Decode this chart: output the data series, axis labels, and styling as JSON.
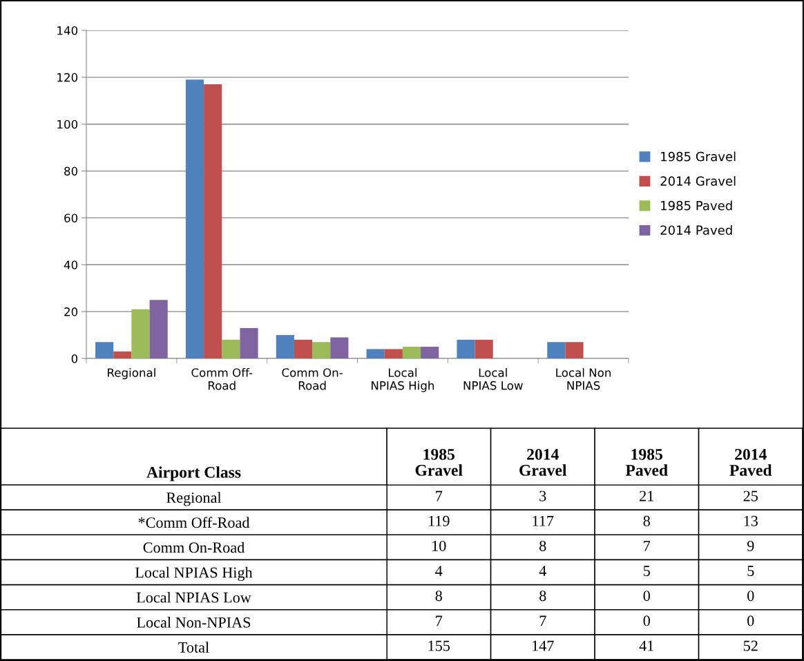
{
  "chart_data": [
    {
      "type": "bar",
      "categories": [
        "Regional",
        "Comm Off-Road",
        "Comm On-Road",
        "Local NPIAS High",
        "Local NPIAS Low",
        "Local Non NPIAS"
      ],
      "series": [
        {
          "name": "1985 Gravel",
          "color": "#4f81bd",
          "values": [
            7,
            119,
            10,
            4,
            8,
            7
          ]
        },
        {
          "name": "2014 Gravel",
          "color": "#c0504d",
          "values": [
            3,
            117,
            8,
            4,
            8,
            7
          ]
        },
        {
          "name": "1985 Paved",
          "color": "#9bbb59",
          "values": [
            21,
            8,
            7,
            5,
            0,
            0
          ]
        },
        {
          "name": "2014 Paved",
          "color": "#8064a2",
          "values": [
            25,
            13,
            9,
            5,
            0,
            0
          ]
        }
      ],
      "ylim": [
        0,
        140
      ],
      "yticks": [
        0,
        20,
        40,
        60,
        80,
        100,
        120,
        140
      ],
      "grid": "y",
      "legend": "right"
    },
    {
      "type": "other",
      "ylabel": "Airport Class",
      "categories": [
        "1985 Gravel",
        "2014 Gravel",
        "1985 Paved",
        "2014 Paved"
      ],
      "y_categories": [
        "Regional",
        "*Comm Off-Road",
        "Comm On-Road",
        "Local NPIAS High",
        "Local NPIAS Low",
        "Local Non-NPIAS",
        "Total"
      ],
      "cell_labels": [
        [
          "7",
          "3",
          "21",
          "25"
        ],
        [
          "119",
          "117",
          "8",
          "13"
        ],
        [
          "10",
          "8",
          "7",
          "9"
        ],
        [
          "4",
          "4",
          "5",
          "5"
        ],
        [
          "8",
          "8",
          "0",
          "0"
        ],
        [
          "7",
          "7",
          "0",
          "0"
        ],
        [
          "155",
          "147",
          "41",
          "52"
        ]
      ]
    }
  ]
}
